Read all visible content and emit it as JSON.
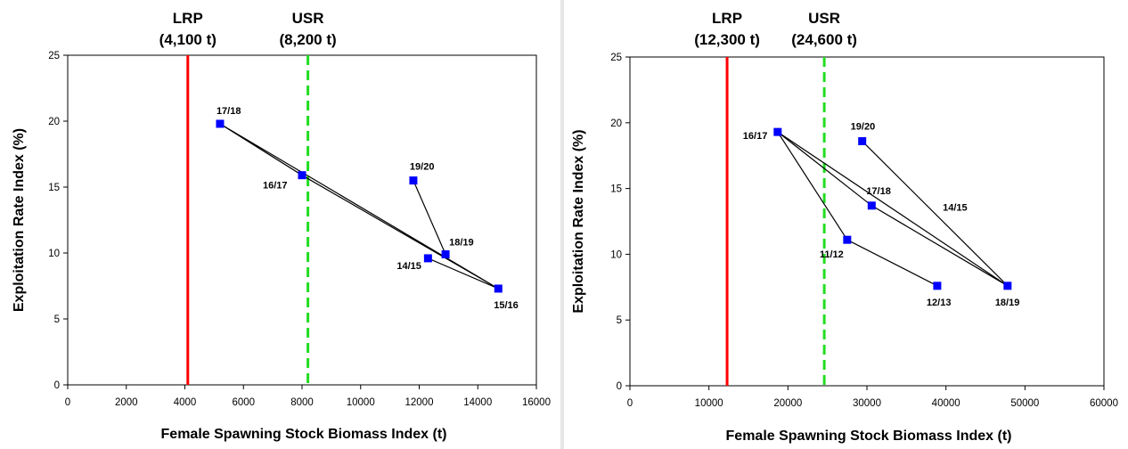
{
  "chart_data": [
    {
      "type": "scatter",
      "title": "",
      "xlabel": "Female Spawning Stock Biomass Index (t)",
      "ylabel": "Exploitation Rate Index (%)",
      "xlim": [
        0,
        16000
      ],
      "ylim": [
        0,
        25
      ],
      "xticks": [
        0,
        2000,
        4000,
        6000,
        8000,
        10000,
        12000,
        14000,
        16000
      ],
      "yticks": [
        0,
        5,
        10,
        15,
        20,
        25
      ],
      "grid": false,
      "reference_lines": [
        {
          "name": "LRP",
          "value_label": "(4,100 t)",
          "x": 4100,
          "color": "#ff0000",
          "style": "solid"
        },
        {
          "name": "USR",
          "value_label": "(8,200 t)",
          "x": 8200,
          "color": "#22dd22",
          "style": "dashed"
        }
      ],
      "points": [
        {
          "label": "14/15",
          "x": 12300,
          "y": 9.6
        },
        {
          "label": "15/16",
          "x": 14700,
          "y": 7.3
        },
        {
          "label": "16/17",
          "x": 8000,
          "y": 15.9
        },
        {
          "label": "17/18",
          "x": 5200,
          "y": 19.8
        },
        {
          "label": "18/19",
          "x": 12900,
          "y": 9.9
        },
        {
          "label": "19/20",
          "x": 11800,
          "y": 15.5
        }
      ],
      "point_color": "#0000ff"
    },
    {
      "type": "scatter",
      "title": "",
      "xlabel": "Female Spawning Stock Biomass Index (t)",
      "ylabel": "Exploitation Rate Index (%)",
      "xlim": [
        0,
        60000
      ],
      "ylim": [
        0,
        25
      ],
      "xticks": [
        0,
        10000,
        20000,
        30000,
        40000,
        50000,
        60000
      ],
      "yticks": [
        0,
        5,
        10,
        15,
        20,
        25
      ],
      "grid": false,
      "reference_lines": [
        {
          "name": "LRP",
          "value_label": "(12,300 t)",
          "x": 12300,
          "color": "#ff0000",
          "style": "solid"
        },
        {
          "name": "USR",
          "value_label": "(24,600 t)",
          "x": 24600,
          "color": "#22dd22",
          "style": "dashed"
        }
      ],
      "points": [
        {
          "label": "11/12",
          "x": 27500,
          "y": 11.1
        },
        {
          "label": "12/13",
          "x": 38900,
          "y": 7.6
        },
        {
          "label": "16/17",
          "x": 18700,
          "y": 19.3
        },
        {
          "label": "17/18",
          "x": 30600,
          "y": 13.7
        },
        {
          "label": "18/19",
          "x": 47800,
          "y": 7.6
        },
        {
          "label": "19/20",
          "x": 29400,
          "y": 18.6
        }
      ],
      "segment_labels": [
        {
          "label": "14/15",
          "x": 39600,
          "y": 13.3
        }
      ],
      "point_color": "#0000ff"
    }
  ]
}
